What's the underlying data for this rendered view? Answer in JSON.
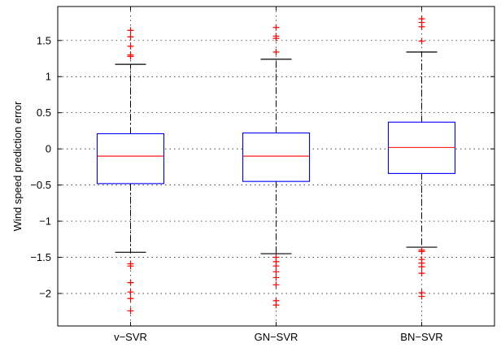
{
  "chart_data": {
    "type": "box",
    "ylabel": "Wind speed prediction error",
    "xlabel": "",
    "title": "",
    "ylim": [
      -2.45,
      1.97
    ],
    "yticks": [
      -2,
      -1.5,
      -1,
      -0.5,
      0,
      0.5,
      1,
      1.5
    ],
    "ytick_labels": [
      "−2",
      "−1.5",
      "−1",
      "−0.5",
      "0",
      "0.5",
      "1",
      "1.5"
    ],
    "categories": [
      "v−SVR",
      "GN−SVR",
      "BN−SVR"
    ],
    "grid": true,
    "colors": {
      "box": "#0000ff",
      "median": "#ff0000",
      "outlier": "#ff0000",
      "whisker": "#000000",
      "grid": "#000000"
    },
    "boxes": [
      {
        "label": "v−SVR",
        "q1": -0.48,
        "median": -0.1,
        "q3": 0.21,
        "whisker_low": -1.43,
        "whisker_high": 1.17,
        "outliers": [
          1.64,
          1.55,
          1.42,
          1.3,
          1.28,
          -1.59,
          -1.62,
          -1.85,
          -1.98,
          -2.07,
          -2.24
        ]
      },
      {
        "label": "GN−SVR",
        "q1": -0.45,
        "median": -0.1,
        "q3": 0.22,
        "whisker_low": -1.45,
        "whisker_high": 1.24,
        "outliers": [
          1.68,
          1.56,
          1.53,
          1.34,
          -1.5,
          -1.56,
          -1.62,
          -1.7,
          -1.78,
          -1.88,
          -2.1,
          -2.16
        ]
      },
      {
        "label": "BN−SVR",
        "q1": -0.34,
        "median": 0.02,
        "q3": 0.37,
        "whisker_low": -1.36,
        "whisker_high": 1.34,
        "outliers": [
          1.8,
          1.75,
          1.69,
          1.49,
          -1.4,
          -1.42,
          -1.53,
          -1.58,
          -1.63,
          -1.72,
          -1.99,
          -2.04
        ]
      }
    ]
  }
}
